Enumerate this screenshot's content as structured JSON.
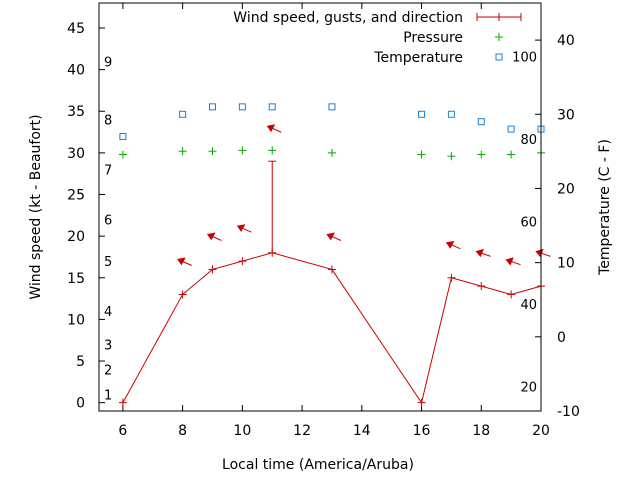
{
  "chart_data": {
    "type": "line",
    "title": "",
    "xlabel": "Local time (America/Aruba)",
    "ylabel": "Wind speed (kt - Beaufort)",
    "y2label": "Temperature (C - F)",
    "xlim": [
      5.2,
      20
    ],
    "ylim": [
      -1,
      48
    ],
    "y2lim": [
      -10,
      45
    ],
    "x_ticks": [
      "6",
      "8",
      "10",
      "12",
      "14",
      "16",
      "18",
      "20"
    ],
    "y_ticks": [
      "0",
      "5",
      "10",
      "15",
      "20",
      "25",
      "30",
      "35",
      "40",
      "45"
    ],
    "y2_ticks": [
      "-10",
      "0",
      "10",
      "20",
      "30",
      "40"
    ],
    "beaufort_ticks": [
      {
        "label": "1",
        "at": 1
      },
      {
        "label": "2",
        "at": 4
      },
      {
        "label": "3",
        "at": 7
      },
      {
        "label": "4",
        "at": 11
      },
      {
        "label": "5",
        "at": 17
      },
      {
        "label": "6",
        "at": 22
      },
      {
        "label": "7",
        "at": 28
      },
      {
        "label": "8",
        "at": 34
      },
      {
        "label": "9",
        "at": 41
      }
    ],
    "fahrenheit_ticks": [
      {
        "label": "20",
        "at": 20
      },
      {
        "label": "40",
        "at": 40
      },
      {
        "label": "60",
        "at": 60
      },
      {
        "label": "80",
        "at": 80
      },
      {
        "label": "100",
        "at": 100
      }
    ],
    "legend_position": "top-right",
    "series": [
      {
        "name": "Wind speed, gusts, and direction",
        "color": "#cc0000",
        "x": [
          6,
          8,
          9,
          10,
          11,
          13,
          16,
          17,
          18,
          19,
          20
        ],
        "values": [
          0,
          13,
          16,
          17,
          18,
          16,
          0,
          15,
          14,
          13,
          14
        ],
        "gusts": [
          null,
          null,
          null,
          null,
          29,
          null,
          null,
          null,
          null,
          null,
          null
        ],
        "direction_arrows": [
          {
            "x": 8,
            "y": 17,
            "angle": 200
          },
          {
            "x": 9,
            "y": 20,
            "angle": 200
          },
          {
            "x": 10,
            "y": 21,
            "angle": 200
          },
          {
            "x": 11,
            "y": 33,
            "angle": 200
          },
          {
            "x": 13,
            "y": 20,
            "angle": 200
          },
          {
            "x": 17,
            "y": 19,
            "angle": 200
          },
          {
            "x": 18,
            "y": 18,
            "angle": 195
          },
          {
            "x": 19,
            "y": 17,
            "angle": 195
          },
          {
            "x": 20,
            "y": 18,
            "angle": 195
          }
        ]
      },
      {
        "name": "Pressure",
        "color": "#00aa00",
        "x": [
          6,
          8,
          9,
          10,
          11,
          13,
          16,
          17,
          18,
          19,
          20
        ],
        "values": [
          29.8,
          30.2,
          30.2,
          30.3,
          30.3,
          30.0,
          29.8,
          29.6,
          29.8,
          29.8,
          30.0
        ]
      },
      {
        "name": "Temperature",
        "color": "#1a7fd4",
        "axis": "right",
        "x": [
          6,
          8,
          9,
          10,
          11,
          13,
          16,
          17,
          18,
          19,
          20
        ],
        "values": [
          27,
          30,
          31,
          31,
          31,
          31,
          30,
          30,
          29,
          28,
          28
        ]
      }
    ]
  }
}
